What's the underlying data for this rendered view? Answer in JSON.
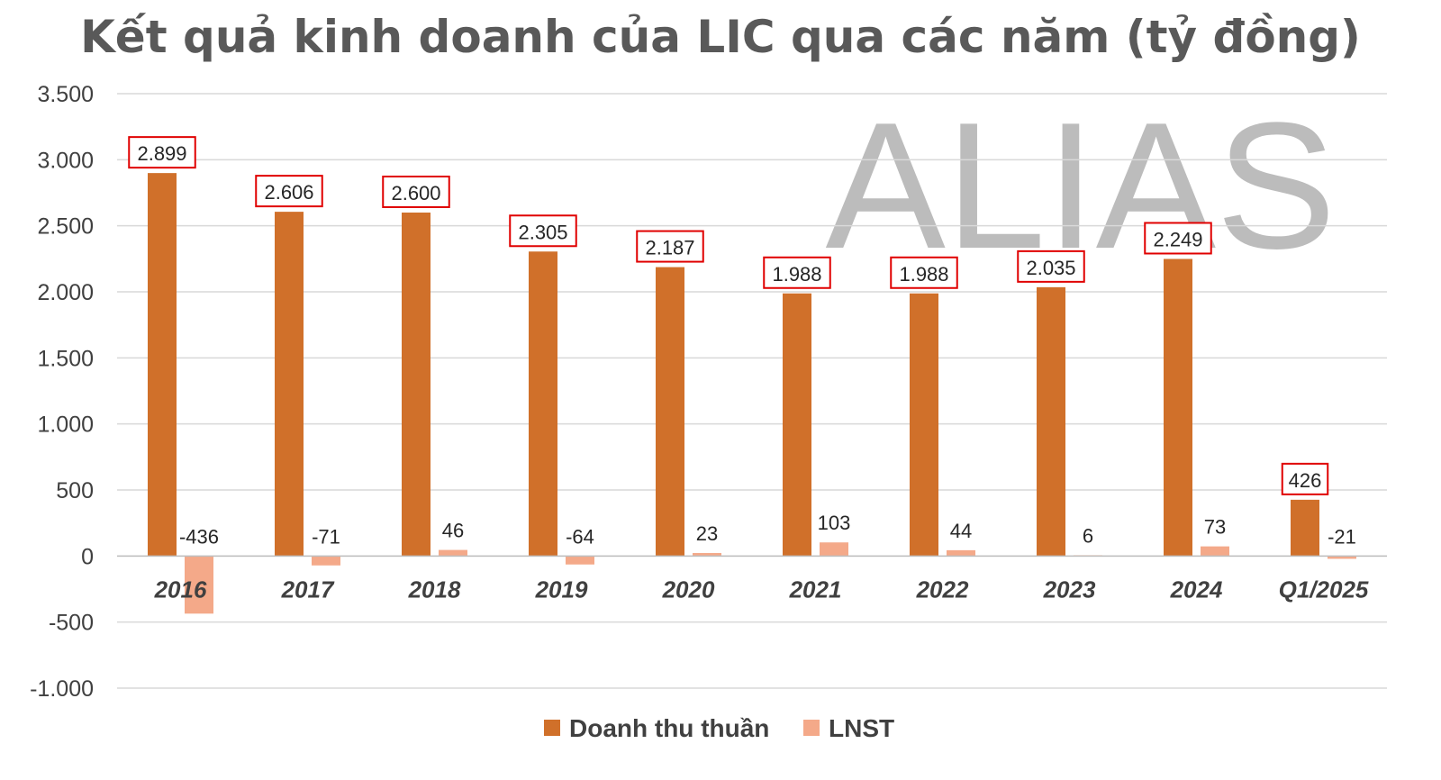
{
  "watermark": "ALIAS",
  "chart_data": {
    "type": "bar",
    "title": "Kết quả kinh doanh của LIC qua các năm (tỷ đồng)",
    "categories": [
      "2016",
      "2017",
      "2018",
      "2019",
      "2020",
      "2021",
      "2022",
      "2023",
      "2024",
      "Q1/2025"
    ],
    "series": [
      {
        "name": "Doanh thu thuần",
        "color": "#D0702A",
        "values": [
          2899,
          2606,
          2600,
          2305,
          2187,
          1988,
          1988,
          2035,
          2249,
          426
        ],
        "labels": [
          "2.899",
          "2.606",
          "2.600",
          "2.305",
          "2.187",
          "1.988",
          "1.988",
          "2.035",
          "2.249",
          "426"
        ],
        "boxed_labels": true
      },
      {
        "name": "LNST",
        "color": "#F4A989",
        "values": [
          -436,
          -71,
          46,
          -64,
          23,
          103,
          44,
          6,
          73,
          -21
        ],
        "labels": [
          "-436",
          "-71",
          "46",
          "-64",
          "23",
          "103",
          "44",
          "6",
          "73",
          "-21"
        ]
      }
    ],
    "yticks": [
      3500,
      3000,
      2500,
      2000,
      1500,
      1000,
      500,
      0,
      -500,
      -1000
    ],
    "ytick_labels": [
      "3.500",
      "3.000",
      "2.500",
      "2.000",
      "1.500",
      "1.000",
      "500",
      "0",
      "-500",
      "-1.000"
    ],
    "ylim": [
      -1000,
      3500
    ],
    "grid": true,
    "legend_position": "bottom",
    "label_box_color": "#E00000"
  }
}
